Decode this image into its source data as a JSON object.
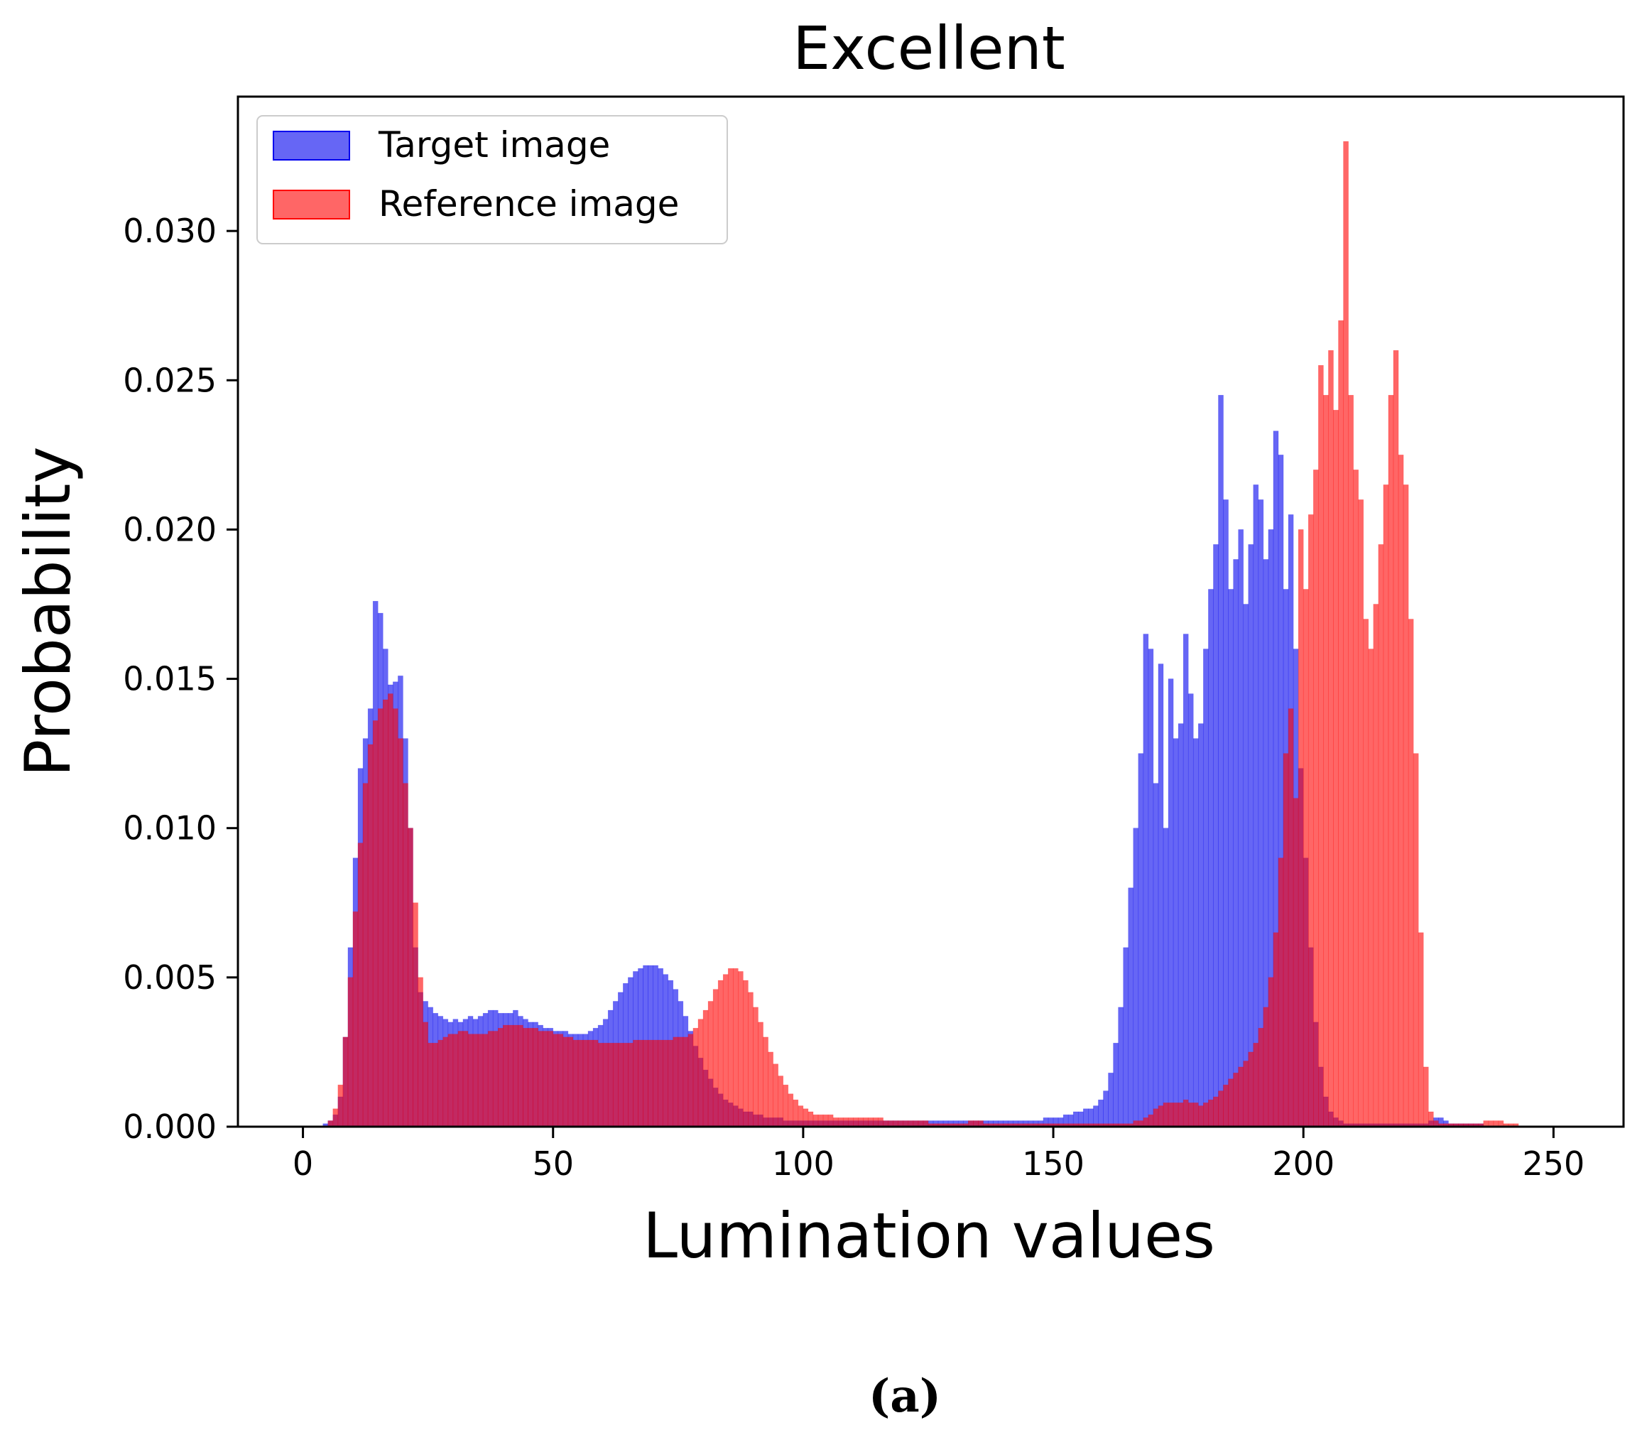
{
  "chart_data": {
    "type": "bar",
    "title": "Excellent",
    "xlabel": "Lumination values",
    "ylabel": "Probability",
    "caption": "(a)",
    "xlim": [
      -13,
      264
    ],
    "ylim": [
      0,
      0.0345
    ],
    "xticks": [
      0,
      50,
      100,
      150,
      200,
      250
    ],
    "xtick_labels": [
      "0",
      "50",
      "100",
      "150",
      "200",
      "250"
    ],
    "yticks": [
      0,
      0.005,
      0.01,
      0.015,
      0.02,
      0.025,
      0.03
    ],
    "ytick_labels": [
      "0.000",
      "0.005",
      "0.010",
      "0.015",
      "0.020",
      "0.025",
      "0.030"
    ],
    "grid": false,
    "legend_position": "top-left",
    "bin_width": 1,
    "x_start": 0,
    "series": [
      {
        "name": "Target image",
        "color": "#0000ee",
        "alpha": 0.6,
        "values": [
          0,
          0,
          0,
          0,
          0.0001,
          0.0002,
          0.0004,
          0.001,
          0.003,
          0.006,
          0.009,
          0.012,
          0.013,
          0.014,
          0.0176,
          0.0172,
          0.016,
          0.0148,
          0.0149,
          0.0151,
          0.013,
          0.01,
          0.006,
          0.0045,
          0.0042,
          0.004,
          0.0038,
          0.0037,
          0.0036,
          0.0035,
          0.0036,
          0.0035,
          0.0036,
          0.0037,
          0.0036,
          0.0037,
          0.0038,
          0.0039,
          0.0039,
          0.0038,
          0.0038,
          0.0038,
          0.0039,
          0.0037,
          0.0036,
          0.0035,
          0.0035,
          0.0034,
          0.0033,
          0.0033,
          0.0032,
          0.0032,
          0.0032,
          0.0031,
          0.0031,
          0.0031,
          0.0031,
          0.0032,
          0.0033,
          0.0034,
          0.0036,
          0.0039,
          0.0042,
          0.0045,
          0.0048,
          0.005,
          0.0052,
          0.0053,
          0.0054,
          0.0054,
          0.0054,
          0.0053,
          0.0051,
          0.0049,
          0.0046,
          0.0042,
          0.0037,
          0.0032,
          0.0027,
          0.0023,
          0.0019,
          0.0016,
          0.0013,
          0.0011,
          0.0009,
          0.0008,
          0.0007,
          0.0006,
          0.0005,
          0.0005,
          0.0004,
          0.0004,
          0.0003,
          0.0003,
          0.0003,
          0.0003,
          0.0002,
          0.0002,
          0.0002,
          0.0002,
          0.0002,
          0.0002,
          0.0002,
          0.0002,
          0.0002,
          0.0002,
          0.0002,
          0.0002,
          0.0002,
          0.0002,
          0.0002,
          0.0002,
          0.0002,
          0.0002,
          0.0002,
          0.0002,
          0.0002,
          0.0002,
          0.0002,
          0.0002,
          0.0002,
          0.0002,
          0.0002,
          0.0002,
          0.0002,
          0.0002,
          0.0002,
          0.0002,
          0.0002,
          0.0002,
          0.0002,
          0.0002,
          0.0002,
          0.0002,
          0.0002,
          0.0002,
          0.0002,
          0.0002,
          0.0002,
          0.0002,
          0.0002,
          0.0002,
          0.0002,
          0.0002,
          0.0002,
          0.0002,
          0.0002,
          0.0002,
          0.0003,
          0.0003,
          0.0003,
          0.0003,
          0.0004,
          0.0004,
          0.0005,
          0.0005,
          0.0006,
          0.0006,
          0.0007,
          0.0009,
          0.0012,
          0.0018,
          0.0028,
          0.004,
          0.006,
          0.008,
          0.01,
          0.0125,
          0.0165,
          0.016,
          0.0115,
          0.0155,
          0.01,
          0.015,
          0.013,
          0.0135,
          0.0165,
          0.0145,
          0.013,
          0.0135,
          0.016,
          0.018,
          0.0195,
          0.0245,
          0.021,
          0.018,
          0.019,
          0.02,
          0.0175,
          0.0195,
          0.0215,
          0.021,
          0.019,
          0.02,
          0.0233,
          0.0225,
          0.018,
          0.0205,
          0.016,
          0.012,
          0.009,
          0.006,
          0.0035,
          0.002,
          0.001,
          0.0005,
          0.0003,
          0.0002,
          0.0001,
          0.0001,
          0.0001,
          0.0001,
          0.0001,
          0.0001,
          0.0001,
          0.0001,
          0.0001,
          0.0001,
          0.0001,
          0.0001,
          0.0001,
          0.0001,
          0.0001,
          0.0001,
          0.0001,
          0.0002,
          0.0003,
          0.0003,
          0.0002,
          0.0001,
          0.0001,
          0.0001,
          0.0001,
          0.0001,
          0.0001,
          0.0001,
          0,
          0,
          0,
          0,
          0,
          0,
          0,
          0,
          0,
          0,
          0,
          0,
          0,
          0,
          0,
          0,
          0,
          0
        ]
      },
      {
        "name": "Reference image",
        "color": "#ff0000",
        "alpha": 0.6,
        "values": [
          0,
          0,
          0,
          0,
          0,
          0.0002,
          0.0006,
          0.0014,
          0.003,
          0.005,
          0.0072,
          0.0095,
          0.0115,
          0.0128,
          0.0136,
          0.014,
          0.0143,
          0.0145,
          0.014,
          0.013,
          0.0115,
          0.01,
          0.0075,
          0.005,
          0.0035,
          0.0028,
          0.0028,
          0.0029,
          0.003,
          0.0031,
          0.0031,
          0.0032,
          0.0032,
          0.0031,
          0.0031,
          0.0031,
          0.0031,
          0.0032,
          0.0032,
          0.0033,
          0.0034,
          0.0034,
          0.0034,
          0.0034,
          0.0033,
          0.0033,
          0.0033,
          0.0032,
          0.0032,
          0.0032,
          0.0031,
          0.0031,
          0.003,
          0.003,
          0.0029,
          0.0029,
          0.0029,
          0.0029,
          0.0029,
          0.0028,
          0.0028,
          0.0028,
          0.0028,
          0.0028,
          0.0028,
          0.0028,
          0.0029,
          0.0029,
          0.0029,
          0.0029,
          0.0029,
          0.0029,
          0.0029,
          0.0029,
          0.003,
          0.003,
          0.003,
          0.0031,
          0.0033,
          0.0036,
          0.0039,
          0.0042,
          0.0046,
          0.0049,
          0.0051,
          0.0053,
          0.0053,
          0.0052,
          0.0049,
          0.0045,
          0.004,
          0.0035,
          0.003,
          0.0025,
          0.0021,
          0.0017,
          0.0014,
          0.0011,
          0.0009,
          0.0007,
          0.0006,
          0.0005,
          0.0004,
          0.0004,
          0.0004,
          0.0004,
          0.0003,
          0.0003,
          0.0003,
          0.0003,
          0.0003,
          0.0003,
          0.0003,
          0.0003,
          0.0003,
          0.0003,
          0.0002,
          0.0002,
          0.0002,
          0.0002,
          0.0002,
          0.0002,
          0.0002,
          0.0002,
          0.0002,
          0.0001,
          0.0001,
          0.0001,
          0.0001,
          0.0001,
          0.0001,
          0.0001,
          0.0001,
          0.0002,
          0.0002,
          0.0002,
          0.0001,
          0.0001,
          0.0001,
          0.0001,
          0.0001,
          0.0001,
          0.0001,
          0.0001,
          0.0001,
          0.0001,
          0.0001,
          0.0001,
          0.0001,
          0.0001,
          0.0001,
          0.0001,
          0.0001,
          0.0001,
          0.0001,
          0.0001,
          0.0001,
          0.0001,
          0.0001,
          0.0001,
          0.0001,
          0.0001,
          0.0001,
          0.0001,
          0.0001,
          0.0001,
          0.0002,
          0.0002,
          0.0003,
          0.0004,
          0.0006,
          0.0007,
          0.0008,
          0.0008,
          0.0008,
          0.0008,
          0.0009,
          0.0008,
          0.0008,
          0.0007,
          0.0008,
          0.0009,
          0.001,
          0.0012,
          0.0014,
          0.0016,
          0.0018,
          0.002,
          0.0022,
          0.0025,
          0.0028,
          0.0033,
          0.004,
          0.005,
          0.0065,
          0.009,
          0.0125,
          0.014,
          0.011,
          0.02,
          0.018,
          0.0205,
          0.022,
          0.0255,
          0.0245,
          0.026,
          0.024,
          0.027,
          0.033,
          0.0245,
          0.022,
          0.021,
          0.017,
          0.016,
          0.0175,
          0.0195,
          0.0215,
          0.0245,
          0.026,
          0.0225,
          0.0215,
          0.017,
          0.0125,
          0.0065,
          0.002,
          0.0005,
          0.0002,
          0.0001,
          0.0001,
          0.0001,
          0.0001,
          0.0001,
          0.0001,
          0.0001,
          0.0001,
          0.0001,
          0.0002,
          0.0002,
          0.0002,
          0.0002,
          0.0001,
          0.0001,
          0.0001,
          0,
          0,
          0,
          0,
          0,
          0,
          0,
          0,
          0,
          0,
          0,
          0,
          0,
          0,
          0,
          0,
          0,
          0
        ]
      }
    ]
  }
}
